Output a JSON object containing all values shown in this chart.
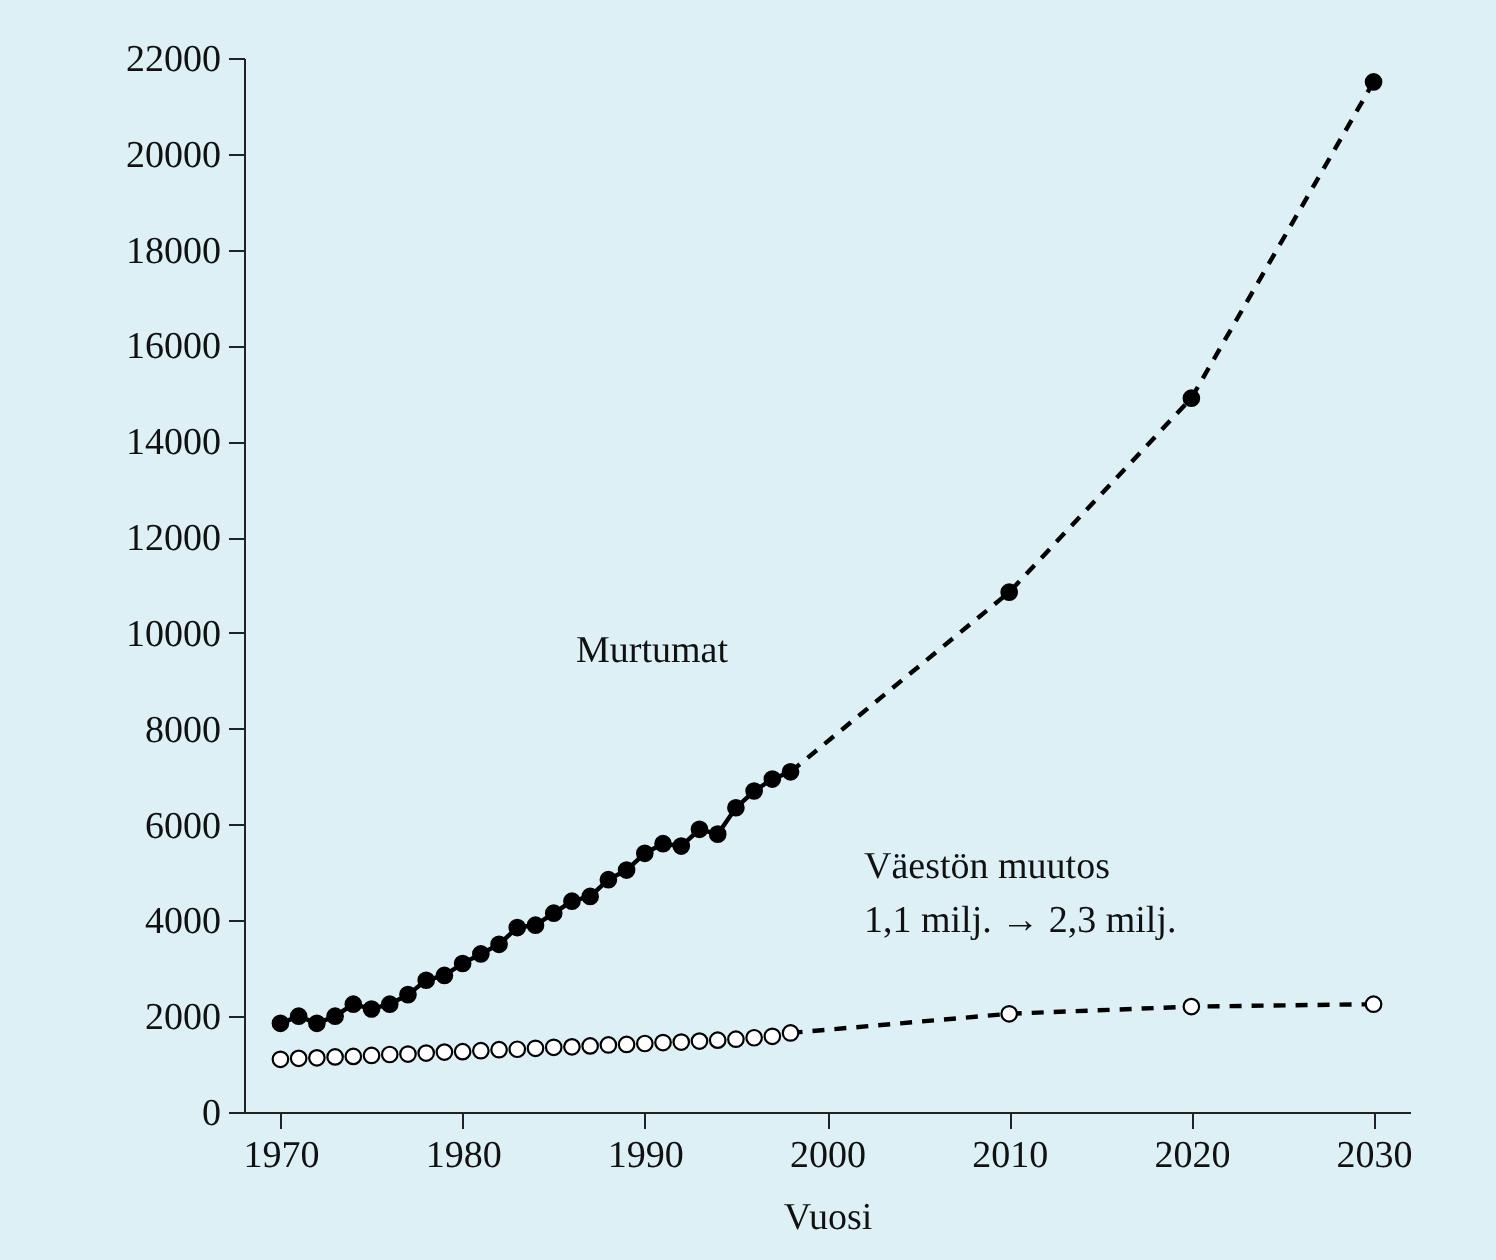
{
  "chart_data": {
    "type": "line",
    "xlabel": "Vuosi",
    "xlim": [
      1968,
      2032
    ],
    "ylim": [
      0,
      22000
    ],
    "xticks": [
      1970,
      1980,
      1990,
      2000,
      2010,
      2020,
      2030
    ],
    "yticks": [
      0,
      2000,
      4000,
      6000,
      8000,
      10000,
      12000,
      14000,
      16000,
      18000,
      20000,
      22000
    ],
    "grid": false,
    "series": [
      {
        "name": "Murtumat",
        "color": "#000000",
        "marker": "circle",
        "line_style": "solid",
        "x": [
          1970,
          1971,
          1972,
          1973,
          1974,
          1975,
          1976,
          1977,
          1978,
          1979,
          1980,
          1981,
          1982,
          1983,
          1984,
          1985,
          1986,
          1987,
          1988,
          1989,
          1990,
          1991,
          1992,
          1993,
          1994,
          1995,
          1996,
          1997,
          1998
        ],
        "values": [
          1850,
          2000,
          1850,
          2000,
          2250,
          2150,
          2250,
          2450,
          2750,
          2850,
          3100,
          3300,
          3500,
          3850,
          3900,
          4150,
          4400,
          4500,
          4850,
          5050,
          5400,
          5600,
          5550,
          5900,
          5800,
          6350,
          6700,
          6950,
          7100
        ]
      },
      {
        "color": "#000000",
        "marker": "none",
        "line_style": "dashed",
        "x": [
          1998,
          2010,
          2020,
          2030
        ],
        "values": [
          7100,
          10850,
          14900,
          21500
        ]
      },
      {
        "type": "scatter",
        "color": "#000000",
        "marker": "circle",
        "x": [
          2010,
          2020,
          2030
        ],
        "values": [
          10850,
          14900,
          21500
        ]
      },
      {
        "color": "#000000",
        "marker": "none",
        "line_style": "dashed",
        "x": [
          1998,
          2010,
          2020,
          2030
        ],
        "values": [
          1650,
          2050,
          2200,
          2250
        ]
      },
      {
        "type": "scatter",
        "color": "#ffffff",
        "marker": "circle",
        "x": [
          1970,
          1971,
          1972,
          1973,
          1974,
          1975,
          1976,
          1977,
          1978,
          1979,
          1980,
          1981,
          1982,
          1983,
          1984,
          1985,
          1986,
          1987,
          1988,
          1989,
          1990,
          1991,
          1992,
          1993,
          1994,
          1995,
          1996,
          1997,
          1998,
          2010,
          2020,
          2030
        ],
        "values": [
          1100,
          1120,
          1130,
          1150,
          1160,
          1180,
          1200,
          1210,
          1230,
          1250,
          1260,
          1280,
          1300,
          1310,
          1330,
          1350,
          1360,
          1380,
          1400,
          1410,
          1430,
          1450,
          1460,
          1480,
          1500,
          1520,
          1550,
          1580,
          1650,
          2050,
          2200,
          2250
        ]
      }
    ],
    "annotations": [
      "Väestön muutos\n1,1 milj.  → 2,3 milj."
    ]
  }
}
